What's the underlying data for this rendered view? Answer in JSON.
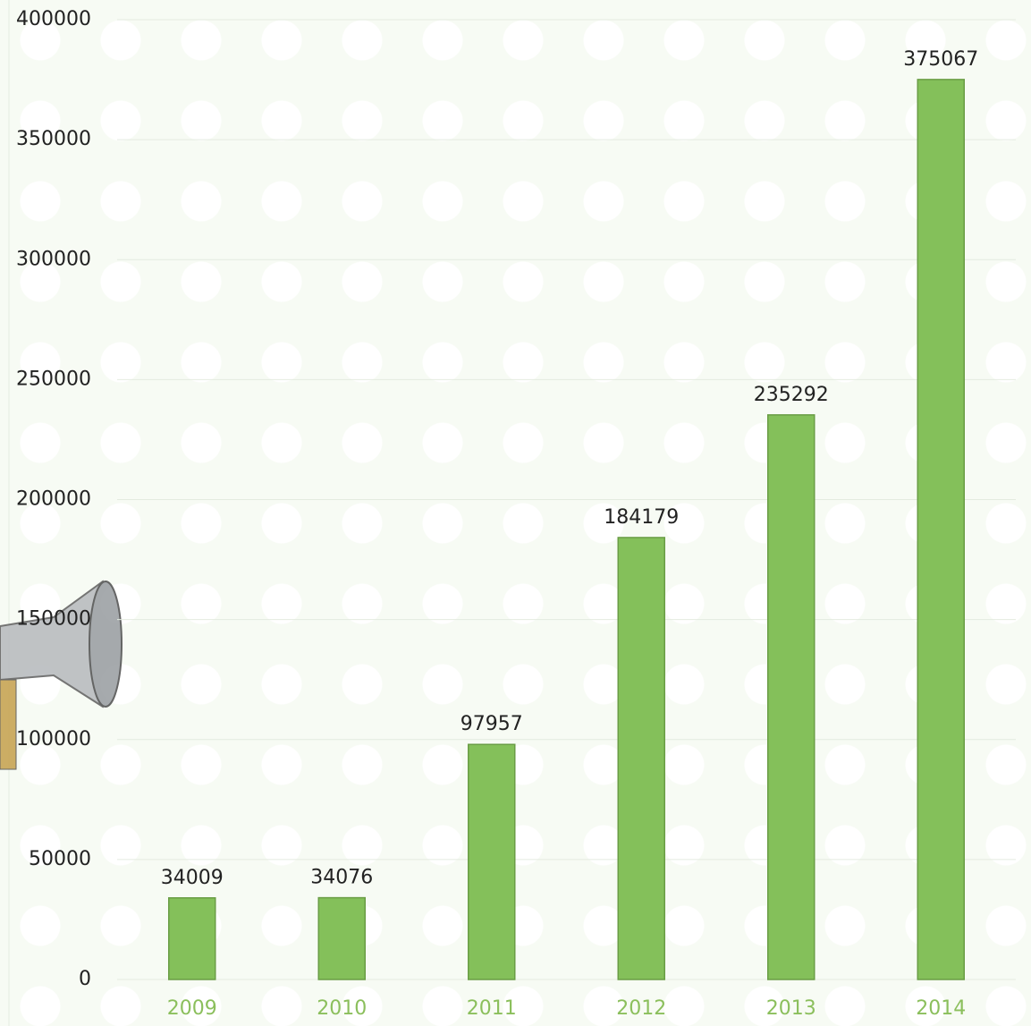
{
  "chart_data": {
    "type": "bar",
    "categories": [
      "2009",
      "2010",
      "2011",
      "2012",
      "2013",
      "2014"
    ],
    "values": [
      34009,
      34076,
      97957,
      184179,
      235292,
      375067
    ],
    "color": "#84c05a",
    "ylim": [
      0,
      400000
    ],
    "yticks": [
      0,
      50000,
      100000,
      150000,
      200000,
      250000,
      300000,
      350000,
      400000
    ],
    "grid": true
  }
}
